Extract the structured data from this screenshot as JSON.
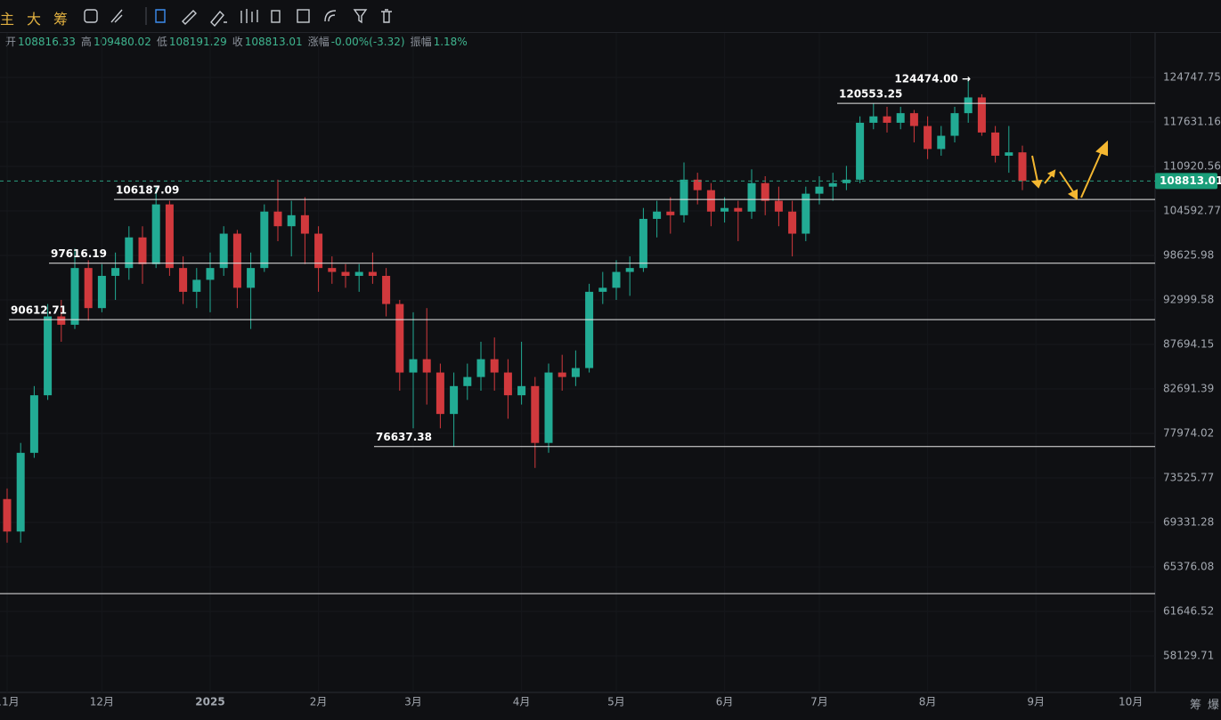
{
  "toolbar": {
    "buttons": [
      "主",
      "大",
      "筹"
    ]
  },
  "info": [
    {
      "label": "开",
      "value": "108816.33"
    },
    {
      "label": "高",
      "value": "109480.02"
    },
    {
      "label": "低",
      "value": "108191.29"
    },
    {
      "label": "收",
      "value": "108813.01"
    },
    {
      "label": "涨幅",
      "value": "-0.00%(-3.32)"
    },
    {
      "label": "振幅",
      "value": "1.18%"
    }
  ],
  "corner_buttons": [
    "筹",
    "爆"
  ],
  "chart_data": {
    "type": "candlestick",
    "categories": [
      "11月",
      null,
      null,
      null,
      null,
      null,
      null,
      "12月",
      null,
      null,
      null,
      null,
      null,
      null,
      null,
      "2025",
      null,
      null,
      null,
      null,
      null,
      null,
      null,
      "2月",
      null,
      null,
      null,
      null,
      null,
      null,
      "3月",
      null,
      null,
      null,
      null,
      null,
      null,
      null,
      "4月",
      null,
      null,
      null,
      null,
      null,
      null,
      "5月",
      null,
      null,
      null,
      null,
      null,
      null,
      null,
      "6月",
      null,
      null,
      null,
      null,
      null,
      null,
      "7月",
      null,
      null,
      null,
      null,
      null,
      null,
      null,
      "8月",
      null,
      null,
      null,
      null,
      null,
      null,
      null,
      "9月",
      null,
      null,
      null,
      null,
      null,
      null,
      "10月",
      null
    ],
    "series": {
      "open": [
        71500,
        68500,
        76000,
        82000,
        91000,
        90000,
        97000,
        92000,
        96000,
        97000,
        101000,
        97500,
        105500,
        97000,
        94000,
        95500,
        97000,
        101500,
        94500,
        97000,
        104500,
        102500,
        104000,
        101500,
        97000,
        96500,
        96000,
        96500,
        96000,
        92500,
        84500,
        86000,
        84500,
        80000,
        83000,
        84000,
        86000,
        84500,
        82000,
        83000,
        77000,
        84500,
        84000,
        85000,
        94000,
        94500,
        96500,
        97000,
        103500,
        104500,
        104000,
        109000,
        107500,
        104500,
        105000,
        104500,
        108500,
        106000,
        104500,
        101500,
        107000,
        108000,
        108500,
        109000,
        117500,
        118500,
        117500,
        119000,
        117000,
        113500,
        115500,
        119000,
        121500,
        116000,
        112500,
        113000,
        null,
        null,
        null,
        null,
        null,
        null,
        null,
        null,
        null
      ],
      "high": [
        72500,
        77000,
        83000,
        92500,
        93000,
        99500,
        98000,
        97500,
        99000,
        102500,
        102500,
        108000,
        106000,
        98500,
        97000,
        99000,
        102500,
        102000,
        99000,
        105500,
        109000,
        106000,
        106500,
        102500,
        98500,
        97500,
        97500,
        99000,
        97000,
        93000,
        91500,
        92000,
        85500,
        84500,
        85500,
        88000,
        88500,
        86000,
        88000,
        84000,
        85500,
        86500,
        87000,
        95000,
        96500,
        98000,
        98500,
        105000,
        106000,
        106500,
        111500,
        110000,
        108500,
        106500,
        106000,
        110500,
        109500,
        108000,
        106000,
        108000,
        109500,
        110000,
        111000,
        118500,
        120553.25,
        120000,
        120000,
        119500,
        118500,
        117000,
        120000,
        124474,
        122000,
        117000,
        117000,
        114000,
        null,
        null,
        null,
        null,
        null,
        null,
        null,
        null,
        null
      ],
      "low": [
        67500,
        67500,
        75500,
        81500,
        88000,
        89500,
        90500,
        91500,
        93000,
        95500,
        95000,
        97000,
        96000,
        92500,
        92000,
        91500,
        96000,
        92000,
        89500,
        96500,
        100500,
        98500,
        97500,
        94000,
        95000,
        94500,
        94000,
        95000,
        91000,
        82500,
        78500,
        81000,
        78500,
        76637.38,
        81500,
        82500,
        82500,
        79500,
        81000,
        74500,
        76000,
        82500,
        83000,
        84500,
        92500,
        93000,
        93500,
        96500,
        101000,
        101500,
        103000,
        105500,
        102500,
        103000,
        100500,
        103500,
        104000,
        102500,
        98500,
        100500,
        105500,
        106000,
        107500,
        108500,
        116500,
        116000,
        116500,
        114500,
        112000,
        112500,
        114500,
        117500,
        115500,
        111500,
        110000,
        107500,
        null,
        null,
        null,
        null,
        null,
        null,
        null,
        null,
        null
      ],
      "close": [
        68500,
        76000,
        82000,
        91000,
        90000,
        97000,
        92000,
        96000,
        97000,
        101000,
        97500,
        105500,
        97000,
        94000,
        95500,
        97000,
        101500,
        94500,
        97000,
        104500,
        102500,
        104000,
        101500,
        97000,
        96500,
        96000,
        96500,
        96000,
        92500,
        84500,
        86000,
        84500,
        80000,
        83000,
        84000,
        86000,
        84500,
        82000,
        83000,
        77000,
        84500,
        84000,
        85000,
        94000,
        94500,
        96500,
        97000,
        103500,
        104500,
        104000,
        109000,
        107500,
        104500,
        105000,
        104500,
        108500,
        106000,
        104500,
        101500,
        107000,
        108000,
        108500,
        109000,
        117500,
        118500,
        117500,
        119000,
        117000,
        113500,
        115500,
        119000,
        121500,
        116000,
        112500,
        113000,
        108813.01,
        null,
        null,
        null,
        null,
        null,
        null,
        null,
        null,
        null
      ]
    },
    "up_color": "#22ab94",
    "down_color": "#d1393d",
    "log_scale": true,
    "grid": true,
    "ylim": [
      55394,
      132295
    ],
    "yticks": [
      124747.75,
      117631.16,
      110920.56,
      104592.77,
      98625.98,
      92999.58,
      87694.15,
      82691.39,
      77974.02,
      73525.77,
      69331.28,
      65376.08,
      61646.52,
      58129.71
    ],
    "last_price": 108813.01,
    "levels": [
      {
        "value": 106187.09
      },
      {
        "value": 97616.19
      },
      {
        "value": 90612.71
      },
      {
        "value": 76637.38
      },
      {
        "value": 120553.25
      },
      {
        "value": 63112
      }
    ],
    "annotation": {
      "value": 124474,
      "label": "124474.00 →"
    }
  }
}
